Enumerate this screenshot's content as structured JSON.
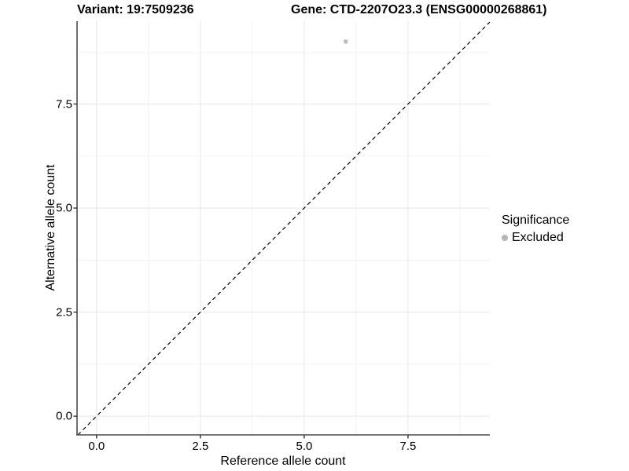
{
  "titles": {
    "variant": "Variant: 19:7509236",
    "gene": "Gene: CTD-2207O23.3 (ENSG00000268861)"
  },
  "chart_data": {
    "type": "scatter",
    "xlabel": "Reference allele count",
    "ylabel": "Alternative allele count",
    "xlim": [
      -0.47,
      9.47
    ],
    "ylim": [
      -0.45,
      9.49
    ],
    "x_ticks": {
      "values": [
        0,
        2.5,
        5,
        7.5
      ],
      "labels": [
        "0.0",
        "2.5",
        "5.0",
        "7.5"
      ]
    },
    "y_ticks": {
      "values": [
        0,
        2.5,
        5,
        7.5
      ],
      "labels": [
        "0.0",
        "2.5",
        "5.0",
        "7.5"
      ]
    },
    "x_minor": [
      1.25,
      3.75,
      6.25,
      8.75
    ],
    "y_minor": [
      1.25,
      3.75,
      6.25,
      8.75
    ],
    "grid": true,
    "points": [
      {
        "x": 6,
        "y": 9,
        "series": "Excluded",
        "color": "#bdbdbd",
        "radius": 2.8
      }
    ],
    "identity_line": {
      "from": -0.45,
      "to": 9.47,
      "style": "dashed",
      "color": "#000000"
    },
    "legend": {
      "position": "right",
      "title": "Significance",
      "items": [
        {
          "label": "Excluded",
          "color": "#b5b5b5"
        }
      ]
    }
  },
  "colors": {
    "background": "#ffffff",
    "grid_major": "#e7e7e7",
    "grid_minor": "#f2f2f2",
    "axis_line": "#4a4a4a",
    "tick_mark": "#333333",
    "point_gray": "#bdbdbd"
  }
}
